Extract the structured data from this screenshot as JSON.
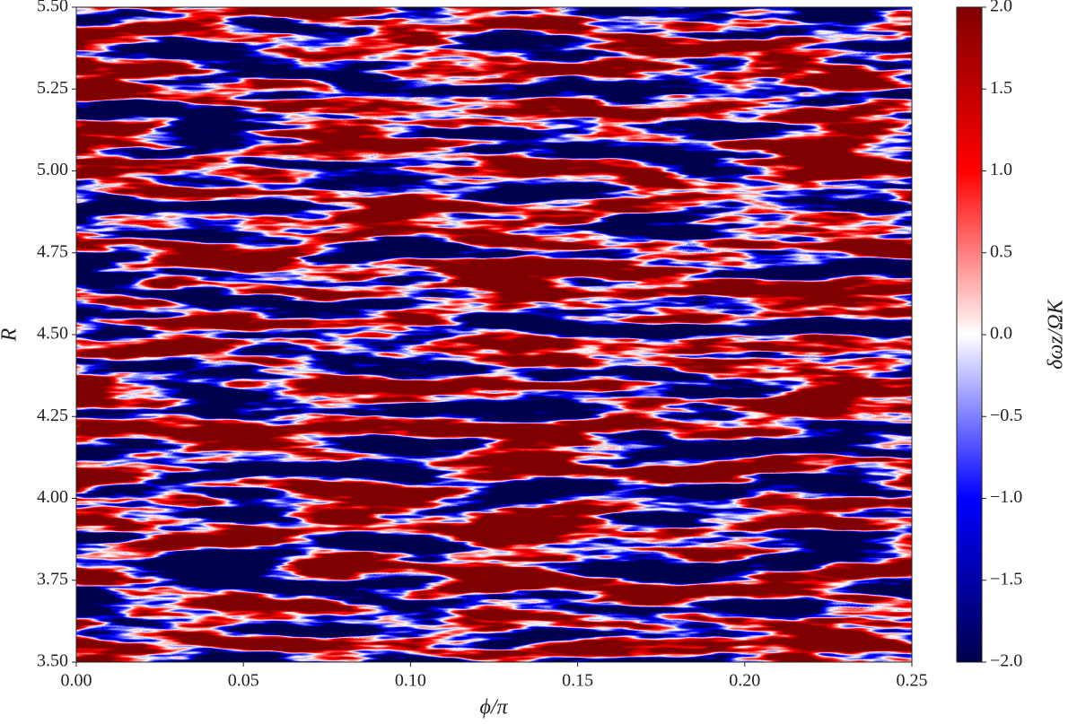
{
  "chart_data": {
    "type": "heatmap",
    "xlabel": "ϕ/π",
    "ylabel": "R",
    "colorbar_label": "δωz/ΩK",
    "colormap": "seismic",
    "xlim": [
      0,
      0.25
    ],
    "xticks": [
      {
        "value": 0,
        "label": "0.00"
      },
      0.05,
      {
        "value": 0.1,
        "label": "0.10"
      },
      0.15,
      {
        "value": 0.2,
        "label": "0.20"
      },
      0.25
    ],
    "ylim": [
      3.5,
      5.5
    ],
    "yticks": [
      {
        "value": 3.5,
        "label": "3.50"
      },
      3.75,
      {
        "value": 4,
        "label": "4.00"
      },
      4.25,
      {
        "value": 4.5,
        "label": "4.50"
      },
      4.75,
      {
        "value": 5,
        "label": "5.00"
      },
      5.25,
      {
        "value": 5.5,
        "label": "5.50"
      }
    ],
    "zlim": [
      -2,
      2
    ],
    "zticks": [
      {
        "value": -2,
        "label": "−2.0"
      },
      {
        "value": -1.5,
        "label": "−1.5"
      },
      {
        "value": -1,
        "label": "−1.0"
      },
      {
        "value": -0.5,
        "label": "−0.5"
      },
      {
        "value": 0,
        "label": "0.0"
      },
      0.5,
      {
        "value": 1,
        "label": "1.0"
      },
      1.5,
      {
        "value": 2,
        "label": "2.0"
      }
    ]
  }
}
